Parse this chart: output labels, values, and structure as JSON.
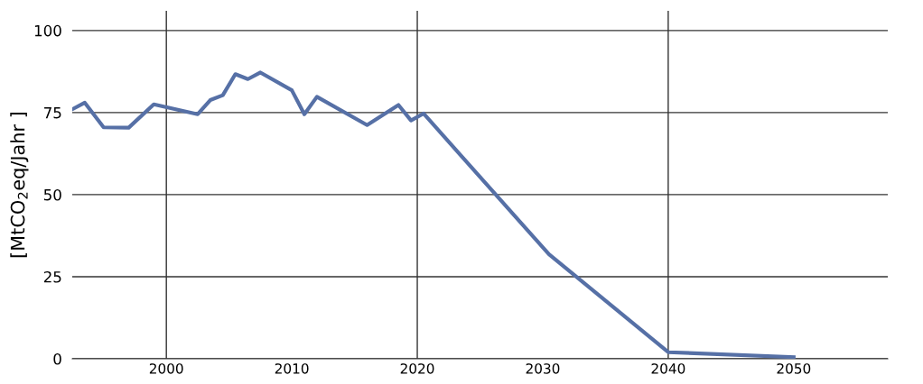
{
  "chart_data": {
    "type": "line",
    "ylabel": "[MtCO$_{2}$eq/Jahr ]",
    "x": [
      1992.5,
      1993.5,
      1995,
      1997,
      1999,
      2002.5,
      2003.5,
      2004.5,
      2005.5,
      2006.5,
      2007.5,
      2010,
      2011,
      2012,
      2016,
      2018.5,
      2019.5,
      2020.5,
      2030.5,
      2040,
      2050
    ],
    "series": [
      {
        "color": "#5670a6",
        "values": [
          76,
          78,
          70.5,
          70.4,
          77.5,
          74.5,
          78.8,
          80.3,
          86.7,
          85.2,
          87.2,
          81.8,
          74.5,
          79.8,
          71.2,
          77.3,
          72.6,
          74.7,
          31.8,
          2,
          0.5
        ]
      }
    ],
    "xlim": [
      1992.5,
      2057.5
    ],
    "xticks": [
      2000,
      2010,
      2020,
      2030,
      2040,
      2050
    ],
    "ylim": [
      0,
      106
    ],
    "yticks": [
      0,
      25,
      50,
      75,
      100
    ],
    "grid": "y",
    "marker": "none",
    "line_style": "solid",
    "ref_lines": [
      {
        "axis": "x",
        "value": 2000,
        "color": "#333333"
      },
      {
        "axis": "x",
        "value": 2020,
        "color": "#333333"
      },
      {
        "axis": "x",
        "value": 2040,
        "color": "#333333"
      }
    ]
  }
}
